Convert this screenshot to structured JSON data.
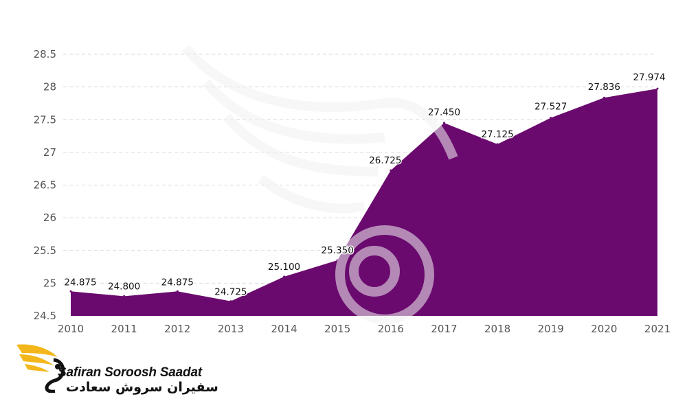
{
  "chart_data": {
    "type": "area",
    "x": [
      "2010",
      "2011",
      "2012",
      "2013",
      "2014",
      "2015",
      "2016",
      "2017",
      "2018",
      "2019",
      "2020",
      "2021"
    ],
    "values": [
      24.875,
      24.8,
      24.875,
      24.725,
      25.1,
      25.35,
      26.725,
      27.45,
      27.125,
      27.527,
      27.836,
      27.974
    ],
    "data_labels": [
      "24.875",
      "24.800",
      "24.875",
      "24.725",
      "25.100",
      "25.350",
      "26.725",
      "27.450",
      "27.125",
      "27.527",
      "27.836",
      "27.974"
    ],
    "y_ticks": [
      "24.5",
      "25",
      "25.5",
      "26",
      "26.5",
      "27",
      "27.5",
      "28",
      "28.5"
    ],
    "ylim": [
      24.5,
      28.5
    ],
    "grid": true,
    "legend": "none",
    "fill_color": "#6a0a6e",
    "grid_color": "#d9d9d9"
  },
  "logo": {
    "name_en": "Safiran Soroosh Saadat",
    "name_fa": "سفیران سروش سعادت",
    "accent": "#f3b71b"
  }
}
